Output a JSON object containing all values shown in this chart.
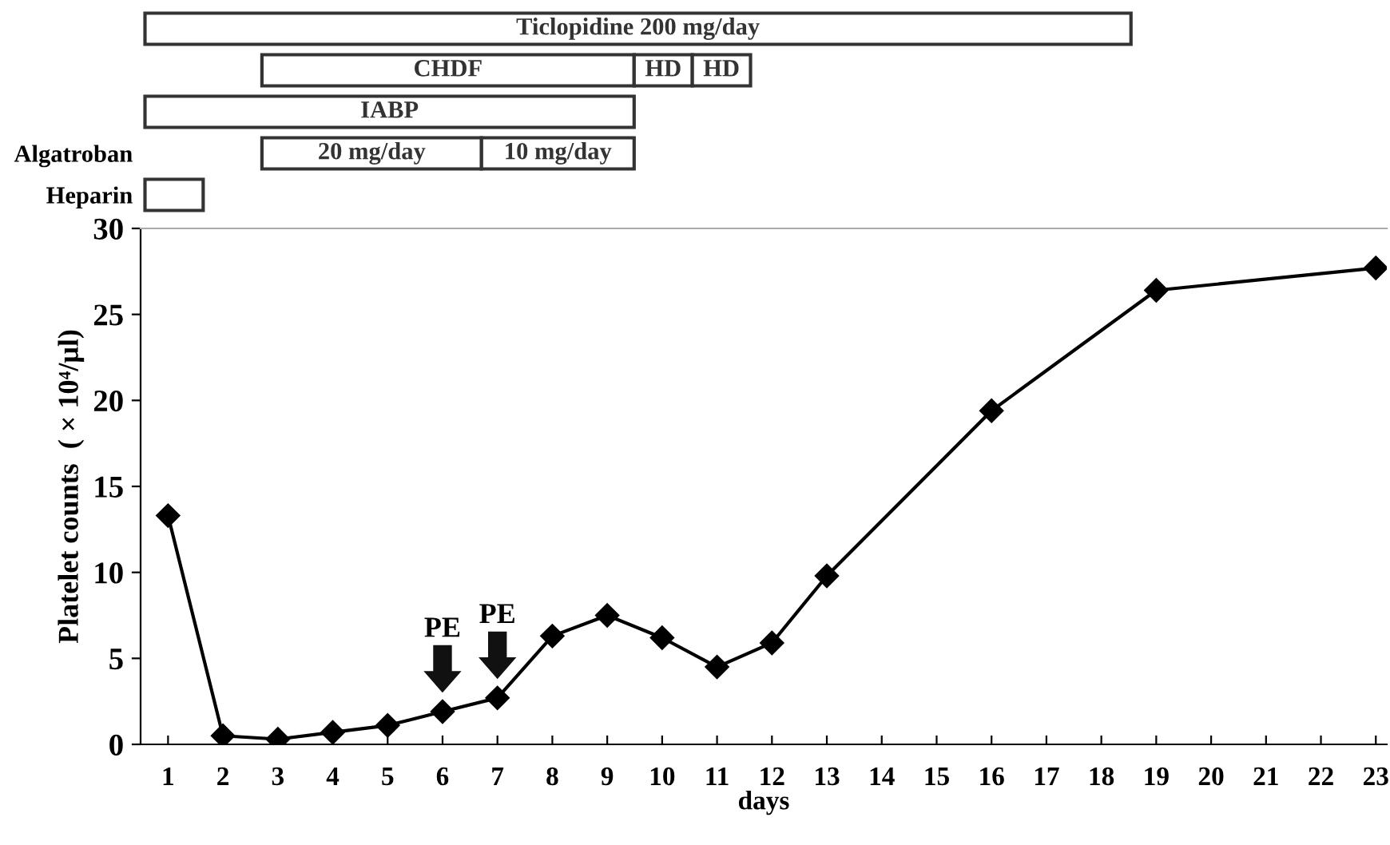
{
  "chart_data": [
    {
      "type": "bar",
      "orientation": "horizontal",
      "categories": [
        null,
        null,
        null,
        "Algatroban",
        "Heparin"
      ],
      "xlim": [
        0.5,
        23.2
      ],
      "tick_labels": "y",
      "series": [
        {
          "name": "Ticlopidine 200 mg/day",
          "color": "#ffffff",
          "base": [
            0.58,
            null,
            null,
            null,
            null
          ],
          "values": [
            17.96,
            null,
            null,
            null,
            null
          ]
        },
        {
          "name": "CHDF",
          "color": "#ffffff",
          "base": [
            null,
            2.71,
            null,
            null,
            null
          ],
          "values": [
            null,
            6.78,
            null,
            null,
            null
          ]
        },
        {
          "name": "HD",
          "color": "#ffffff",
          "base": [
            null,
            9.49,
            null,
            null,
            null
          ],
          "values": [
            null,
            1.06,
            null,
            null,
            null
          ]
        },
        {
          "name": "HD",
          "color": "#ffffff",
          "base": [
            null,
            10.55,
            null,
            null,
            null
          ],
          "values": [
            null,
            1.06,
            null,
            null,
            null
          ]
        },
        {
          "name": "IABP",
          "color": "#ffffff",
          "base": [
            null,
            null,
            0.58,
            null,
            null
          ],
          "values": [
            null,
            null,
            8.91,
            null,
            null
          ]
        },
        {
          "name": "20 mg/day",
          "color": "#ffffff",
          "base": [
            null,
            null,
            null,
            2.71,
            null
          ],
          "values": [
            null,
            null,
            null,
            4.0,
            null
          ]
        },
        {
          "name": "10 mg/day",
          "color": "#ffffff",
          "base": [
            null,
            null,
            null,
            6.71,
            null
          ],
          "values": [
            null,
            null,
            null,
            2.78,
            null
          ]
        },
        {
          "color": "#ffffff",
          "base": [
            null,
            null,
            null,
            null,
            0.58
          ],
          "values": [
            null,
            null,
            null,
            null,
            1.06
          ]
        }
      ]
    },
    {
      "type": "line",
      "xlabel": "days",
      "ylabel": "Platelet counts  ( × 10⁴/μl)",
      "xlim": [
        0.5,
        23.2
      ],
      "ylim": [
        0,
        30
      ],
      "xticks": [
        1,
        2,
        3,
        4,
        5,
        6,
        7,
        8,
        9,
        10,
        11,
        12,
        13,
        14,
        15,
        16,
        17,
        18,
        19,
        20,
        21,
        22,
        23
      ],
      "yticks": [
        0,
        5,
        10,
        15,
        20,
        25,
        30
      ],
      "grid": false,
      "marker": "diamond",
      "line_style": "solid",
      "series": [
        {
          "color": "#000000",
          "x": [
            1,
            2,
            3,
            4,
            5,
            6,
            7,
            8,
            9,
            10,
            11,
            12,
            13,
            16,
            19,
            23
          ],
          "values": [
            13.3,
            0.5,
            0.3,
            0.7,
            1.1,
            1.9,
            2.7,
            6.3,
            7.5,
            6.2,
            4.5,
            5.9,
            9.8,
            19.4,
            26.4,
            27.7
          ]
        }
      ],
      "annotations": [
        {
          "text": "PE",
          "x": 6,
          "y": 1.9
        },
        {
          "text": "PE",
          "x": 7,
          "y": 2.7
        }
      ]
    }
  ]
}
